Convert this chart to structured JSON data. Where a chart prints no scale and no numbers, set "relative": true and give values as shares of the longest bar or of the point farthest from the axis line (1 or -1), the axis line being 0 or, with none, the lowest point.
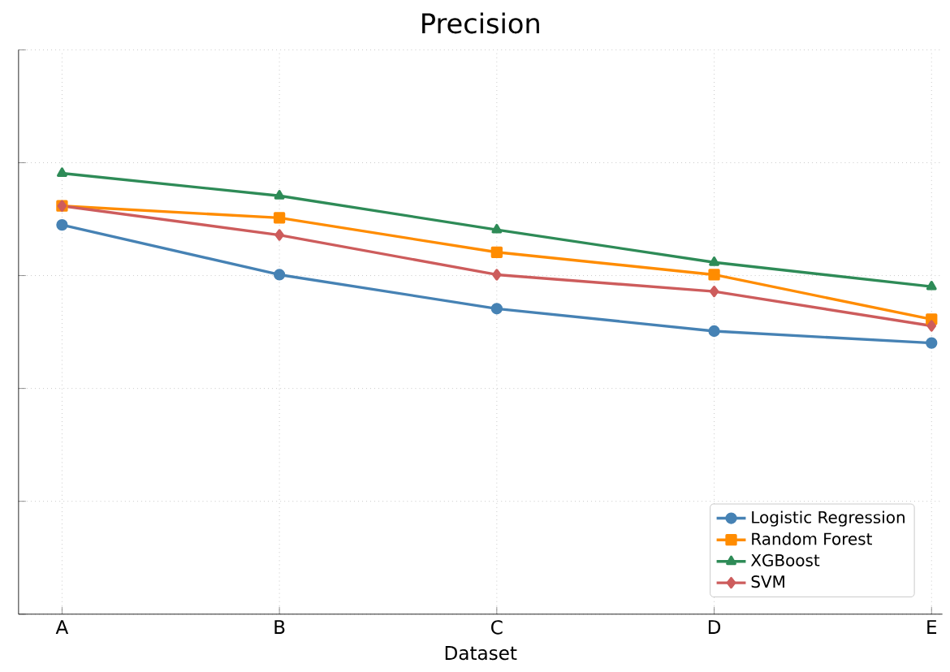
{
  "chart_data": {
    "type": "line",
    "title": "Precision",
    "xlabel": "Dataset",
    "relative": true,
    "grid": true,
    "legend": "bottom right",
    "categories": [
      "A",
      "B",
      "C",
      "D",
      "E"
    ],
    "series": [
      {
        "name": "Logistic Regression",
        "color": "#4682b4",
        "marker": "circle",
        "values": [
          0.883,
          0.77,
          0.693,
          0.642,
          0.615
        ]
      },
      {
        "name": "Random Forest",
        "color": "#ff8c00",
        "marker": "square",
        "values": [
          0.926,
          0.899,
          0.821,
          0.77,
          0.669
        ]
      },
      {
        "name": "XGBoost",
        "color": "#2e8b57",
        "marker": "triangle",
        "values": [
          1.0,
          0.949,
          0.872,
          0.798,
          0.743
        ]
      },
      {
        "name": "SVM",
        "color": "#cd5c5c",
        "marker": "diamond",
        "values": [
          0.926,
          0.86,
          0.77,
          0.732,
          0.654
        ]
      }
    ]
  }
}
